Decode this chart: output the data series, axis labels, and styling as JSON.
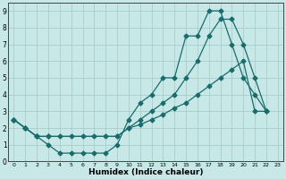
{
  "xlabel": "Humidex (Indice chaleur)",
  "xlim": [
    -0.5,
    23.5
  ],
  "ylim": [
    0,
    9.5
  ],
  "xticks": [
    0,
    1,
    2,
    3,
    4,
    5,
    6,
    7,
    8,
    9,
    10,
    11,
    12,
    13,
    14,
    15,
    16,
    17,
    18,
    19,
    20,
    21,
    22,
    23
  ],
  "yticks": [
    0,
    1,
    2,
    3,
    4,
    5,
    6,
    7,
    8,
    9
  ],
  "bg_color": "#c8e8e8",
  "grid_color": "#a8cccc",
  "line_color": "#1a6b6b",
  "line1_x": [
    0,
    1,
    2,
    3,
    4,
    5,
    6,
    7,
    8,
    9,
    10,
    11,
    12,
    13,
    14,
    15,
    16,
    17,
    18,
    19,
    20,
    21,
    22
  ],
  "line1_y": [
    2.5,
    2.0,
    1.5,
    1.0,
    0.5,
    0.5,
    0.5,
    0.5,
    0.5,
    1.0,
    2.5,
    3.5,
    4.0,
    5.0,
    5.0,
    7.5,
    7.5,
    9.0,
    9.0,
    7.0,
    5.0,
    4.0,
    3.0
  ],
  "line2_x": [
    0,
    1,
    2,
    3,
    9,
    10,
    11,
    12,
    13,
    14,
    15,
    16,
    17,
    18,
    19,
    20,
    21,
    22
  ],
  "line2_y": [
    2.5,
    2.0,
    1.5,
    1.5,
    1.5,
    2.0,
    2.5,
    3.0,
    3.5,
    4.0,
    5.0,
    6.0,
    7.5,
    8.5,
    8.5,
    7.0,
    5.0,
    3.0
  ],
  "line3_x": [
    0,
    1,
    2,
    3,
    4,
    5,
    6,
    7,
    8,
    9,
    10,
    11,
    12,
    13,
    14,
    15,
    16,
    17,
    18,
    19,
    20,
    21,
    22
  ],
  "line3_y": [
    2.5,
    2.0,
    1.5,
    1.5,
    1.5,
    1.5,
    1.5,
    1.5,
    1.5,
    1.5,
    2.0,
    2.2,
    2.5,
    2.8,
    3.2,
    3.5,
    4.0,
    4.5,
    5.0,
    5.5,
    6.0,
    3.0,
    3.0
  ]
}
